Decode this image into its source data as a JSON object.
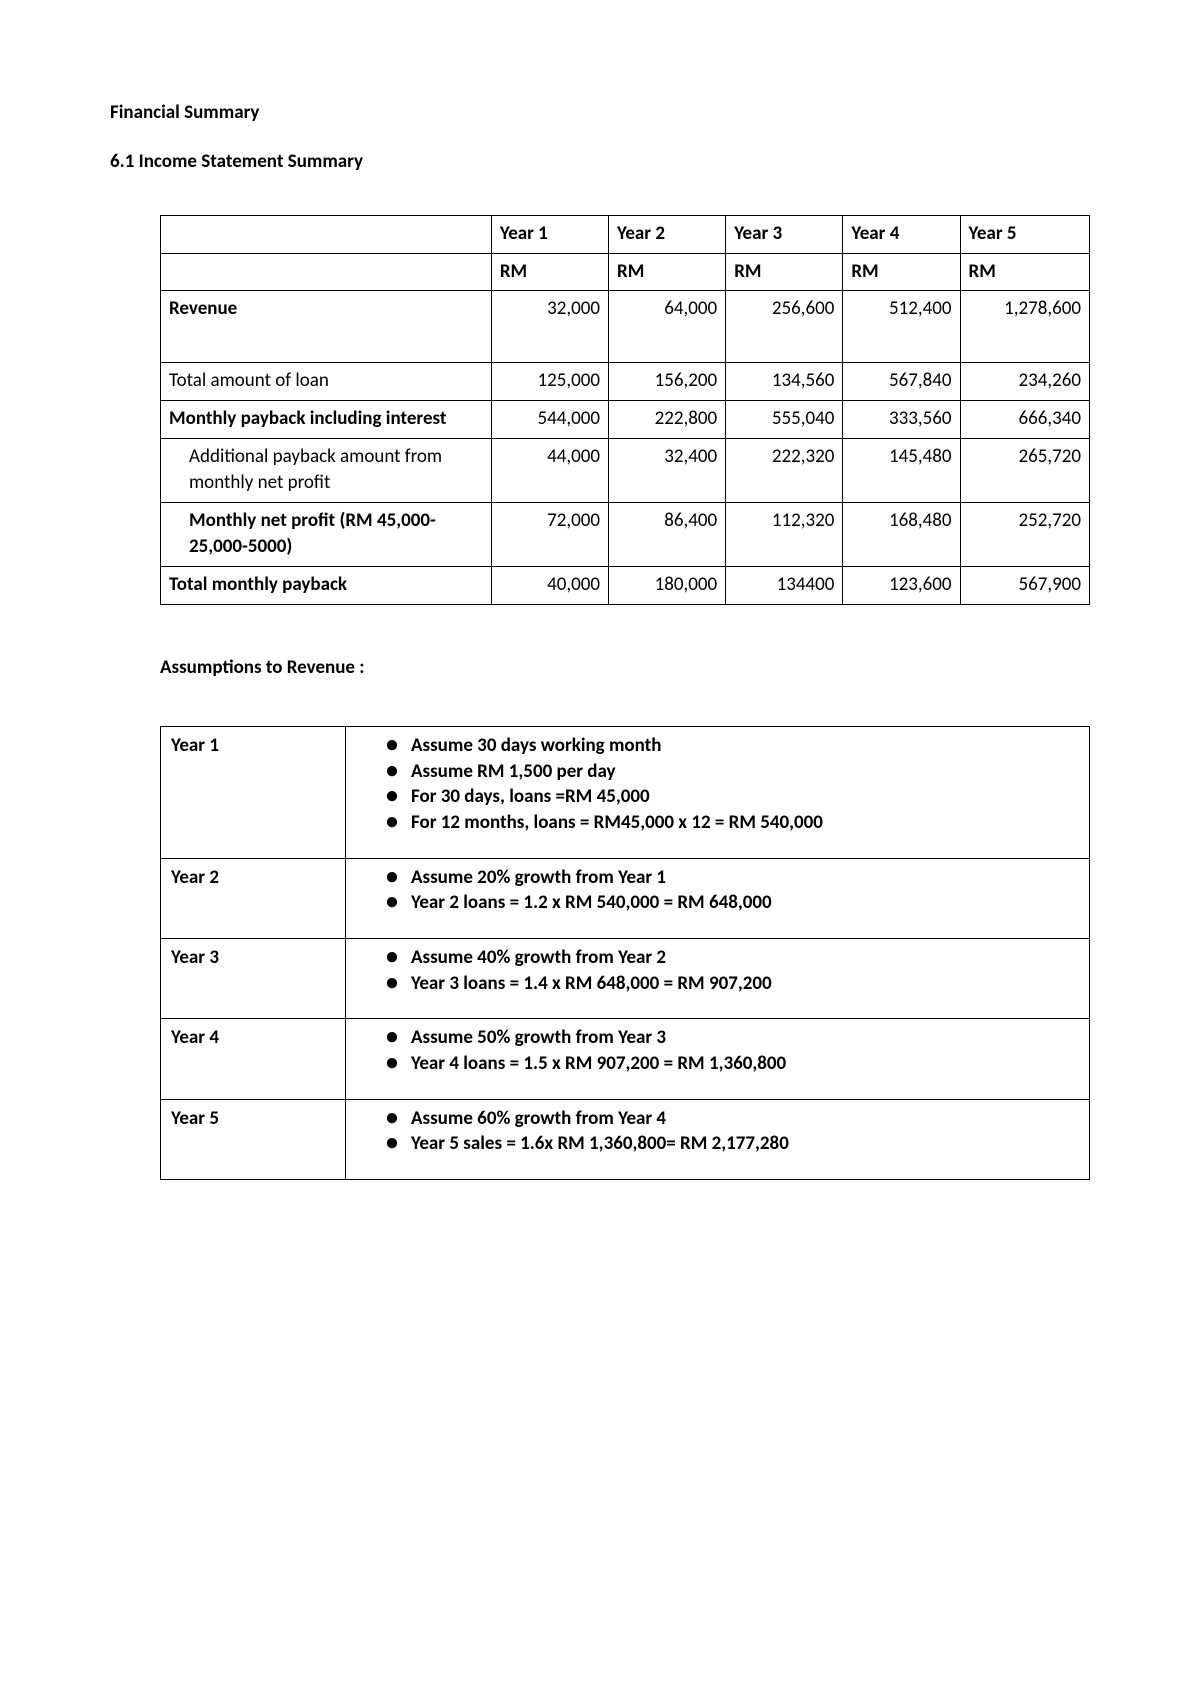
{
  "headings": {
    "title": "Financial Summary",
    "subtitle": "6.1 Income Statement Summary",
    "assumptions_title": "Assumptions to Revenue :"
  },
  "income_table": {
    "type": "table",
    "header_row1": [
      "",
      "Year 1",
      "Year 2",
      "Year 3",
      "Year 4",
      "Year 5"
    ],
    "header_row2": [
      "",
      "RM",
      "RM",
      "RM",
      "RM",
      "RM"
    ],
    "rows": [
      {
        "label": "Revenue",
        "bold": true,
        "indent": false,
        "cells": [
          "32,000",
          "64,000",
          "256,600",
          "512,400",
          "1,278,600"
        ]
      },
      {
        "label": "Total amount of loan",
        "bold": false,
        "indent": false,
        "cells": [
          "125,000",
          "156,200",
          "134,560",
          "567,840",
          "234,260"
        ]
      },
      {
        "label": "Monthly payback including interest",
        "bold": true,
        "indent": false,
        "cells": [
          "544,000",
          "222,800",
          "555,040",
          "333,560",
          "666,340"
        ]
      },
      {
        "label": "Additional payback amount from monthly net profit",
        "bold": false,
        "indent": true,
        "cells": [
          "44,000",
          "32,400",
          "222,320",
          "145,480",
          "265,720"
        ]
      },
      {
        "label": "Monthly net profit (RM 45,000-25,000-5000)",
        "bold": true,
        "indent": true,
        "cells": [
          "72,000",
          "86,400",
          "112,320",
          "168,480",
          "252,720"
        ]
      },
      {
        "label": "Total monthly payback",
        "bold": true,
        "indent": false,
        "cells": [
          "40,000",
          "180,000",
          "134400",
          "123,600",
          "567,900"
        ]
      }
    ],
    "border_color": "#000000",
    "text_color": "#000000",
    "background_color": "#ffffff"
  },
  "assumptions_table": {
    "type": "table",
    "rows": [
      {
        "year": "Year 1",
        "items": [
          "Assume 30 days working month",
          "Assume RM 1,500 per day",
          "For 30 days, loans =RM 45,000",
          "For 12 months, loans = RM45,000 x 12 = RM 540,000"
        ]
      },
      {
        "year": "Year 2",
        "items": [
          "Assume 20% growth from Year 1",
          "Year 2 loans = 1.2 x RM 540,000 = RM 648,000"
        ]
      },
      {
        "year": "Year 3",
        "items": [
          "Assume 40% growth from Year 2",
          "Year 3 loans = 1.4 x RM 648,000 = RM 907,200"
        ]
      },
      {
        "year": "Year 4",
        "items": [
          "Assume 50% growth from Year 3",
          "Year 4 loans = 1.5 x RM 907,200 = RM 1,360,800"
        ]
      },
      {
        "year": "Year 5",
        "items": [
          "Assume 60% growth from Year 4",
          "Year 5 sales = 1.6x RM 1,360,800= RM 2,177,280"
        ]
      }
    ],
    "border_color": "#000000",
    "text_color": "#000000",
    "background_color": "#ffffff"
  }
}
